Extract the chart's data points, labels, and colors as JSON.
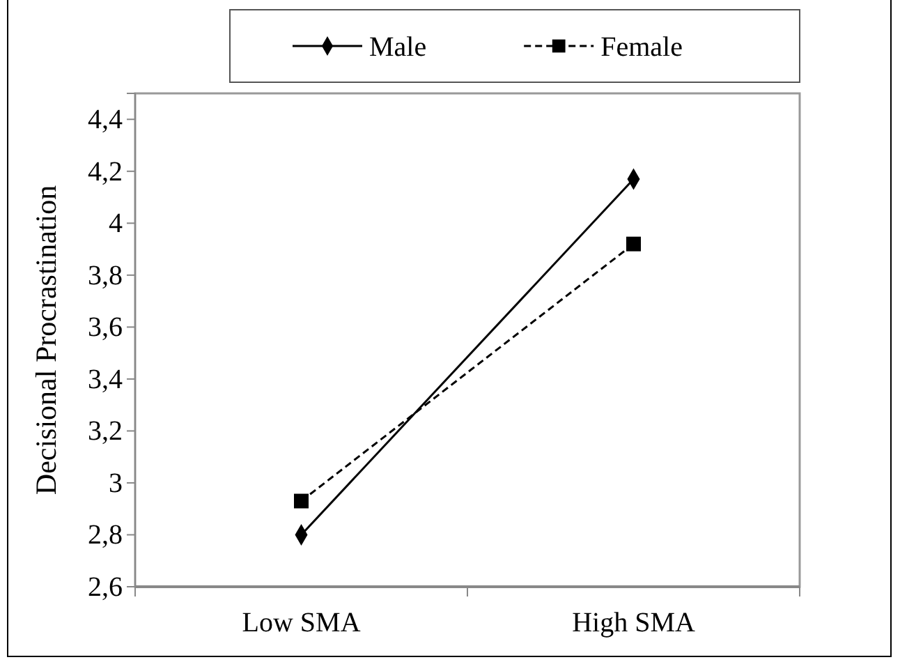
{
  "chart_data": {
    "type": "line",
    "ylabel": "Decisional Procrastination",
    "categories": [
      "Low SMA",
      "High SMA"
    ],
    "series": [
      {
        "name": "Male",
        "color": "#000000",
        "values": [
          2.8,
          4.17
        ],
        "marker": "diamond",
        "line_style": "solid"
      },
      {
        "name": "Female",
        "color": "#000000",
        "values": [
          2.93,
          3.92
        ],
        "marker": "square",
        "line_style": "dashed"
      }
    ],
    "ylim": [
      2.6,
      4.5
    ],
    "yticks": [
      {
        "value": 2.6,
        "label": "2,6"
      },
      {
        "value": 2.8,
        "label": "2,8"
      },
      {
        "value": 3,
        "label": "3"
      },
      {
        "value": 3.2,
        "label": "3,2"
      },
      {
        "value": 3.4,
        "label": "3,4"
      },
      {
        "value": 3.6,
        "label": "3,6"
      },
      {
        "value": 3.8,
        "label": "3,8"
      },
      {
        "value": 4,
        "label": "4"
      },
      {
        "value": 4.2,
        "label": "4,2"
      },
      {
        "value": 4.4,
        "label": "4,4"
      }
    ],
    "grid": false,
    "legend": "top"
  }
}
